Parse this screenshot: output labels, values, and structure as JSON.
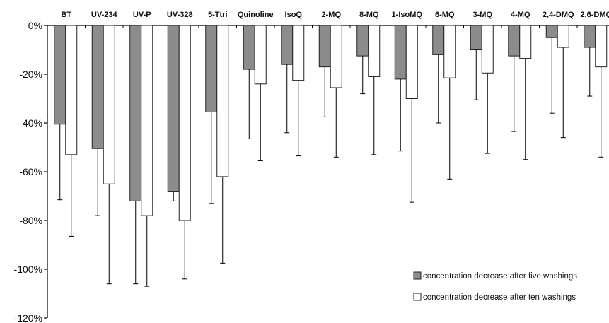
{
  "chart_data": {
    "type": "bar",
    "categories": [
      "BT",
      "UV-234",
      "UV-P",
      "UV-328",
      "5-Ttri",
      "Quinoline",
      "IsoQ",
      "2-MQ",
      "8-MQ",
      "1-IsoMQ",
      "6-MQ",
      "3-MQ",
      "4-MQ",
      "2,4-DMQ",
      "2,6-DMQ"
    ],
    "series": [
      {
        "name": "concentration decrease after five washings",
        "color": "#8c8c8c",
        "values": [
          -40.5,
          -50.5,
          -72,
          -68,
          -35.5,
          -18,
          -16,
          -17,
          -12.5,
          -22,
          -12,
          -10,
          -12.5,
          -5,
          -9
        ],
        "error": [
          31,
          27.5,
          34,
          4,
          37.5,
          28.5,
          28,
          20.5,
          15.5,
          29.5,
          28,
          20.5,
          31,
          31,
          20
        ]
      },
      {
        "name": "concentration decrease after ten washings",
        "color": "#ffffff",
        "values": [
          -53,
          -65,
          -78,
          -80,
          -62,
          -24,
          -22.5,
          -25.5,
          -21,
          -30,
          -21.5,
          -19.5,
          -13.5,
          -9,
          -17
        ],
        "error": [
          33.5,
          41,
          29,
          24,
          35.5,
          31.5,
          31,
          28.5,
          32,
          42.5,
          41.5,
          33,
          41.5,
          37,
          37
        ]
      }
    ],
    "yticks": [
      "0%",
      "-20%",
      "-40%",
      "-60%",
      "-80%",
      "-100%",
      "-120%"
    ],
    "ylim": [
      -120,
      0
    ],
    "legend_position": "bottom-right",
    "grid": false
  }
}
